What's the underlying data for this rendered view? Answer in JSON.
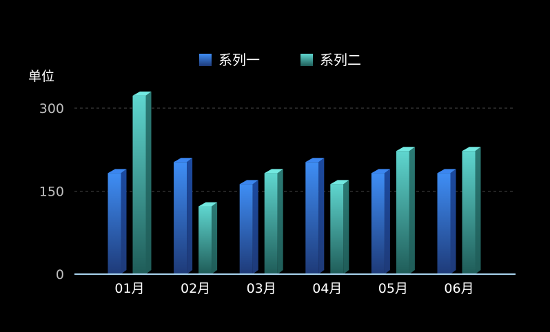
{
  "chart_data": {
    "type": "bar",
    "style": "3d-bar",
    "unit_label": "单位",
    "categories": [
      "01月",
      "02月",
      "03月",
      "04月",
      "05月",
      "06月"
    ],
    "series": [
      {
        "name": "系列一",
        "values": [
          190,
          210,
          170,
          210,
          190,
          190
        ],
        "color_top": "#3f8ef5",
        "color_bottom": "#1e3a78",
        "cap_color": "#3b86f0",
        "side_color": "#1c4aa0"
      },
      {
        "name": "系列二",
        "values": [
          330,
          130,
          190,
          170,
          230,
          230
        ],
        "color_top": "#5fd6cf",
        "color_bottom": "#1f5c58",
        "cap_color": "#72e9e1",
        "side_color": "#2b7a74"
      }
    ],
    "y_ticks": [
      0,
      150,
      300
    ],
    "ylim": [
      0,
      300
    ],
    "grid": true,
    "grid_style": "dashed",
    "legend_position": "top-center",
    "axis_color": "#a9d4ef",
    "tick_text_color": "#bfbfbf",
    "background": "#000000"
  }
}
